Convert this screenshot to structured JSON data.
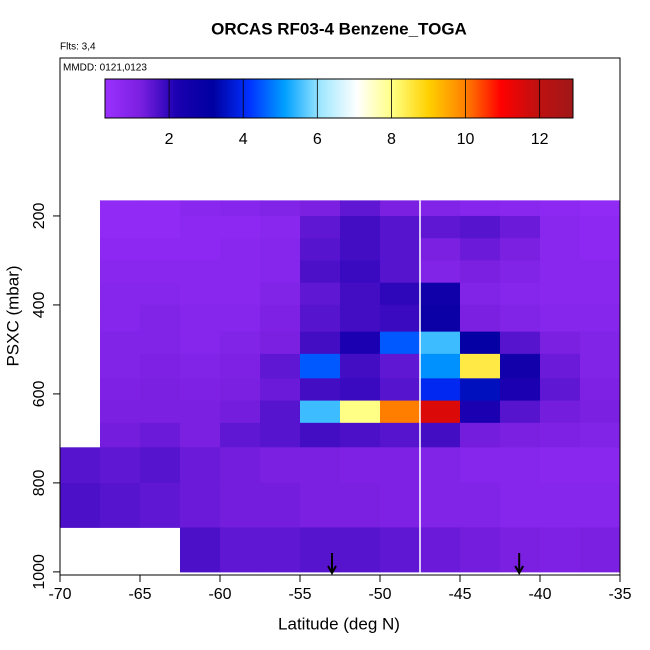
{
  "chart_data": {
    "type": "heatmap",
    "title": "ORCAS RF03-4 Benzene_TOGA",
    "annotations": [
      "Flts: 3,4",
      "MMDD: 0121,0123"
    ],
    "xlabel": "Latitude (deg N)",
    "ylabel": "PSXC (mbar)",
    "xlim": [
      -70,
      -35
    ],
    "xticks": [
      -70,
      -65,
      -60,
      -55,
      -50,
      -45,
      -40,
      -35
    ],
    "ylim": [
      -155,
      1007
    ],
    "yticks": [
      200,
      400,
      600,
      800,
      1000
    ],
    "x": [
      -70,
      -67.5,
      -65,
      -62.5,
      -60,
      -57.5,
      -55,
      -52.5,
      -50,
      -47.5,
      -45,
      -42.5,
      -40,
      -37.5,
      -35
    ],
    "x_end": -35,
    "y": [
      165,
      200,
      250,
      300,
      350,
      400,
      460,
      510,
      565,
      615,
      665,
      720,
      800,
      900,
      1000
    ],
    "z": [
      [
        null,
        0.6,
        0.6,
        0.8,
        0.9,
        1.0,
        1.2,
        1.5,
        1.2,
        1.0,
        0.9,
        0.8,
        0.7,
        0.6
      ],
      [
        null,
        0.6,
        0.6,
        0.7,
        0.7,
        0.8,
        1.5,
        1.8,
        1.6,
        1.5,
        1.6,
        1.4,
        0.8,
        0.7
      ],
      [
        null,
        0.7,
        0.7,
        0.7,
        0.8,
        0.9,
        1.6,
        1.8,
        1.6,
        1.2,
        1.4,
        1.2,
        0.8,
        0.7
      ],
      [
        null,
        0.8,
        0.8,
        0.8,
        0.8,
        0.9,
        1.7,
        1.9,
        1.6,
        1.0,
        1.2,
        1.0,
        0.8,
        0.8
      ],
      [
        null,
        0.9,
        0.9,
        0.8,
        0.8,
        1.0,
        1.5,
        1.8,
        2.0,
        2.6,
        1.0,
        0.9,
        0.8,
        0.8
      ],
      [
        null,
        0.9,
        1.0,
        0.9,
        0.9,
        1.1,
        1.6,
        1.8,
        1.9,
        2.8,
        1.2,
        1.0,
        0.9,
        0.9
      ],
      [
        null,
        1.0,
        1.0,
        0.9,
        1.0,
        1.2,
        1.8,
        2.2,
        4.5,
        5.5,
        3.0,
        1.6,
        1.2,
        1.0
      ],
      [
        null,
        1.0,
        1.1,
        1.0,
        1.1,
        1.5,
        4.5,
        1.8,
        1.5,
        5.0,
        8.5,
        2.5,
        1.4,
        1.0
      ],
      [
        null,
        1.1,
        1.2,
        1.1,
        1.2,
        1.4,
        1.8,
        1.9,
        1.6,
        4.0,
        3.5,
        2.2,
        1.5,
        1.1
      ],
      [
        null,
        1.2,
        1.2,
        1.2,
        1.3,
        1.6,
        5.5,
        8.0,
        10.0,
        11.5,
        2.2,
        1.6,
        1.3,
        1.2
      ],
      [
        null,
        1.3,
        1.4,
        1.2,
        1.5,
        1.6,
        1.8,
        1.7,
        1.6,
        1.8,
        1.3,
        1.2,
        1.1,
        1.0
      ],
      [
        1.6,
        1.5,
        1.6,
        1.4,
        1.3,
        1.2,
        1.2,
        1.1,
        1.1,
        1.0,
        0.9,
        0.9,
        0.8,
        0.8
      ],
      [
        1.7,
        1.6,
        1.5,
        1.4,
        1.3,
        1.3,
        1.2,
        1.2,
        1.1,
        1.0,
        1.0,
        0.9,
        0.9,
        0.9
      ],
      [
        null,
        null,
        null,
        1.7,
        1.5,
        1.5,
        1.6,
        1.6,
        1.5,
        1.4,
        1.3,
        1.2,
        1.1,
        1.2
      ]
    ],
    "colorbar_lim": [
      0.27,
      12.9
    ],
    "colorbar_ticks": [
      2,
      4,
      6,
      8,
      10,
      12
    ],
    "colors": [
      "#9b30ff",
      "#7a1fe0",
      "#1a00b0",
      "#0000a0",
      "#0030ff",
      "#00a0ff",
      "#a0e8ff",
      "#ffffff",
      "#ffff80",
      "#ffd000",
      "#ff8000",
      "#ff0000",
      "#c01010",
      "#a01818"
    ],
    "vline": -47.5,
    "arrows": [
      -53,
      -41.3
    ]
  }
}
